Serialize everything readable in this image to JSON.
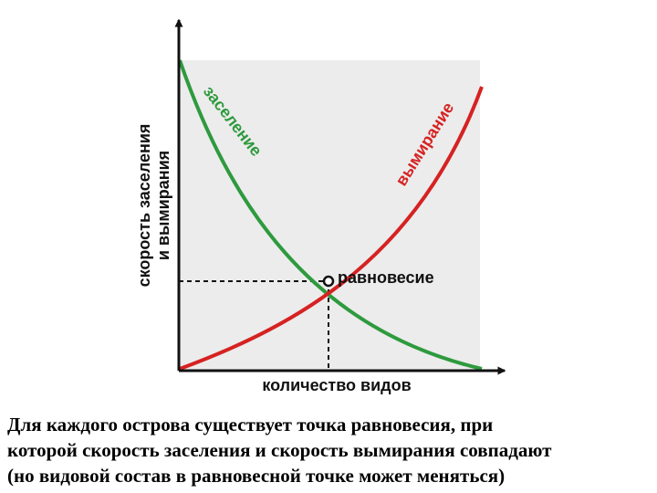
{
  "diagram": {
    "y_axis_label_line1": "скорость заселения",
    "y_axis_label_line2": "и вымирания",
    "x_axis_label": "количество видов",
    "colonization_label": "заселение",
    "extinction_label": "вымирание",
    "equilibrium_label": "равновесие",
    "colors": {
      "colonization": "#2e9a3e",
      "extinction": "#d62222",
      "plot_background": "#ececec",
      "axis": "#111111"
    }
  },
  "caption": {
    "line1": "Для каждого острова существует точка равновесия, при",
    "line2": "которой скорость заселения и скорость вымирания совпадают",
    "line3": "(но видовой состав в равновесной точке может меняться)"
  }
}
